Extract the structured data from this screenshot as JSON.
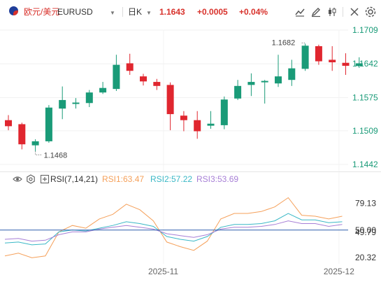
{
  "header": {
    "pair_name": "欧元/美元",
    "symbol": "EURUSD",
    "timeframe": "日K",
    "price": "1.1643",
    "change": "+0.0005",
    "change_pct": "+0.04%",
    "buttons": [
      "chart-type-icon",
      "draw-icon",
      "candle-style-icon",
      "fullscreen-icon",
      "settings-icon"
    ]
  },
  "colors": {
    "up": "#1a9b78",
    "down": "#e0262f",
    "rsi1": "#f5a05a",
    "rsi2": "#3ab8c6",
    "rsi3": "#a77fd6",
    "ref": "#2e5fae"
  },
  "chart_data": [
    {
      "type": "candlestick",
      "yticks": [
        "1.1709",
        "1.1642",
        "1.1575",
        "1.1509",
        "1.1442"
      ],
      "ylim": [
        1.1442,
        1.1709
      ],
      "xticks": [
        {
          "label": "2025-11",
          "index": 11.5
        },
        {
          "label": "2025-12",
          "index": 24.5
        }
      ],
      "annotations": {
        "high": "1.1682",
        "low": "1.1468"
      },
      "candles": [
        {
          "o": 1.153,
          "h": 1.154,
          "l": 1.151,
          "c": 1.1518
        },
        {
          "o": 1.1522,
          "h": 1.1525,
          "l": 1.1472,
          "c": 1.1482
        },
        {
          "o": 1.148,
          "h": 1.1492,
          "l": 1.1468,
          "c": 1.1488
        },
        {
          "o": 1.1488,
          "h": 1.156,
          "l": 1.1485,
          "c": 1.1555
        },
        {
          "o": 1.1553,
          "h": 1.1597,
          "l": 1.1532,
          "c": 1.157
        },
        {
          "o": 1.1563,
          "h": 1.1574,
          "l": 1.1553,
          "c": 1.1565
        },
        {
          "o": 1.1564,
          "h": 1.159,
          "l": 1.1556,
          "c": 1.1585
        },
        {
          "o": 1.1585,
          "h": 1.1606,
          "l": 1.1582,
          "c": 1.1594
        },
        {
          "o": 1.1592,
          "h": 1.166,
          "l": 1.1588,
          "c": 1.164
        },
        {
          "o": 1.1643,
          "h": 1.1662,
          "l": 1.162,
          "c": 1.1628
        },
        {
          "o": 1.1617,
          "h": 1.1622,
          "l": 1.1599,
          "c": 1.1607
        },
        {
          "o": 1.1606,
          "h": 1.1612,
          "l": 1.159,
          "c": 1.1598
        },
        {
          "o": 1.16,
          "h": 1.1605,
          "l": 1.151,
          "c": 1.1542
        },
        {
          "o": 1.1539,
          "h": 1.1548,
          "l": 1.1508,
          "c": 1.153
        },
        {
          "o": 1.153,
          "h": 1.1548,
          "l": 1.1493,
          "c": 1.1508
        },
        {
          "o": 1.1519,
          "h": 1.1548,
          "l": 1.1513,
          "c": 1.1523
        },
        {
          "o": 1.152,
          "h": 1.1577,
          "l": 1.1512,
          "c": 1.1571
        },
        {
          "o": 1.1573,
          "h": 1.161,
          "l": 1.157,
          "c": 1.1598
        },
        {
          "o": 1.16,
          "h": 1.1623,
          "l": 1.1578,
          "c": 1.1606
        },
        {
          "o": 1.1607,
          "h": 1.161,
          "l": 1.1563,
          "c": 1.1608
        },
        {
          "o": 1.1603,
          "h": 1.166,
          "l": 1.1596,
          "c": 1.1617
        },
        {
          "o": 1.161,
          "h": 1.165,
          "l": 1.1598,
          "c": 1.1633
        },
        {
          "o": 1.1632,
          "h": 1.1682,
          "l": 1.1628,
          "c": 1.1678
        },
        {
          "o": 1.1677,
          "h": 1.168,
          "l": 1.164,
          "c": 1.1647
        },
        {
          "o": 1.165,
          "h": 1.1677,
          "l": 1.1628,
          "c": 1.1645
        },
        {
          "o": 1.1644,
          "h": 1.1663,
          "l": 1.162,
          "c": 1.1638
        },
        {
          "o": 1.1638,
          "h": 1.1655,
          "l": 1.1634,
          "c": 1.1643
        }
      ]
    },
    {
      "type": "line",
      "title": "RSI(7,14,21)",
      "series": [
        {
          "name": "RSI1:63.47",
          "values": [
            22,
            25,
            20,
            22,
            48,
            55,
            52,
            62,
            67,
            78,
            72,
            60,
            37,
            32,
            28,
            38,
            62,
            68,
            68,
            70,
            75,
            85,
            66,
            65,
            62,
            65
          ]
        },
        {
          "name": "RSI2:57.22",
          "values": [
            36,
            37,
            34,
            35,
            48,
            50,
            49,
            52,
            55,
            59,
            57,
            54,
            43,
            40,
            38,
            43,
            53,
            56,
            56,
            57,
            60,
            68,
            61,
            61,
            58,
            59
          ]
        },
        {
          "name": "RSI3:53.69",
          "values": [
            40,
            41,
            38,
            39,
            45,
            48,
            48,
            51,
            53,
            55,
            53,
            51,
            46,
            44,
            42,
            45,
            51,
            53,
            53,
            54,
            56,
            60,
            57,
            57,
            54,
            56
          ]
        }
      ],
      "yticks": [
        "79.13",
        "50.00",
        "49.79",
        "20.32"
      ],
      "ylim": [
        15,
        96
      ],
      "ref_level": 50
    }
  ]
}
